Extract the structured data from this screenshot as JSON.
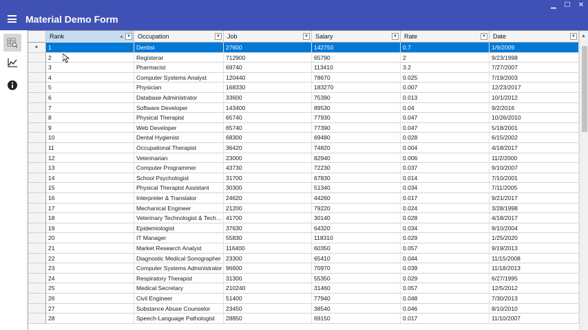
{
  "window": {
    "minimize": "▁",
    "maximize": "☐",
    "close": "✕"
  },
  "app_title": "Material Demo Form",
  "sidebar": {
    "items": [
      {
        "name": "grid-icon",
        "active": true
      },
      {
        "name": "chart-icon",
        "active": false
      },
      {
        "name": "info-icon",
        "active": false
      }
    ]
  },
  "grid": {
    "columns": [
      "Rank",
      "Occupation",
      "Job",
      "Salary",
      "Rate",
      "Date"
    ],
    "selected_row": 0,
    "rows": [
      [
        "1",
        "Dentist",
        "27600",
        "142750",
        "0.7",
        "1/9/2009"
      ],
      [
        "2",
        "Registerar",
        "712900",
        "65790",
        "2",
        "9/23/1998"
      ],
      [
        "3",
        "Pharmacist",
        "69740",
        "113410",
        "3.2",
        "7/27/2007"
      ],
      [
        "4",
        "Computer Systems Analyst",
        "120440",
        "78670",
        "0.025",
        "7/19/2003"
      ],
      [
        "5",
        "Physician",
        "168330",
        "183270",
        "0.007",
        "12/23/2017"
      ],
      [
        "6",
        "Database Administrator",
        "33600",
        "75390",
        "0.013",
        "10/1/2012"
      ],
      [
        "7",
        "Software Developer",
        "143400",
        "89530",
        "0.04",
        "9/2/2016"
      ],
      [
        "8",
        "Physical Therapist",
        "65740",
        "77930",
        "0.047",
        "10/26/2010"
      ],
      [
        "9",
        "Web Developer",
        "65740",
        "77390",
        "0.047",
        "5/18/2001"
      ],
      [
        "10",
        "Dental Hygienist",
        "68300",
        "69480",
        "0.028",
        "6/15/2002"
      ],
      [
        "11",
        "Occupational Therapist",
        "36420",
        "74820",
        "0.004",
        "4/18/2017"
      ],
      [
        "12",
        "Veterinarian",
        "23000",
        "82940",
        "0.006",
        "11/2/2000"
      ],
      [
        "13",
        "Computer Programmer",
        "43730",
        "72230",
        "0.037",
        "9/10/2007"
      ],
      [
        "14",
        "School Psychologist",
        "31700",
        "67830",
        "0.014",
        "7/10/2001"
      ],
      [
        "15",
        "Physical Therapist Assistant",
        "30300",
        "51340",
        "0.034",
        "7/11/2005"
      ],
      [
        "16",
        "Interpreter & Translator",
        "24620",
        "44260",
        "0.017",
        "9/21/2017"
      ],
      [
        "17",
        "Mechanical Engineer",
        "21200",
        "79220",
        "0.024",
        "3/28/1998"
      ],
      [
        "18",
        "Veterinary Technologist & Technician",
        "41700",
        "30140",
        "0.028",
        "4/18/2017"
      ],
      [
        "19",
        "Epidemiologist",
        "37630",
        "64320",
        "0.034",
        "9/10/2004"
      ],
      [
        "20",
        "IT Manager",
        "55830",
        "118310",
        "0.029",
        "1/25/2020"
      ],
      [
        "21",
        "Market Research Analyst",
        "116400",
        "60350",
        "0.057",
        "9/19/2013"
      ],
      [
        "22",
        "Diagnostic Medical Sonographer",
        "23300",
        "65410",
        "0.044",
        "11/15/2008"
      ],
      [
        "23",
        "Computer Systems Administrator",
        "96600",
        "70970",
        "0.039",
        "11/18/2013"
      ],
      [
        "24",
        "Respiratory Therapist",
        "31300",
        "55350",
        "0.029",
        "6/27/1995"
      ],
      [
        "25",
        "Medical Secretary",
        "210240",
        "31460",
        "0.057",
        "12/5/2012"
      ],
      [
        "26",
        "Civil Engineer",
        "51400",
        "77940",
        "0.048",
        "7/30/2013"
      ],
      [
        "27",
        "Substance Abuse Counselor",
        "23450",
        "38540",
        "0.046",
        "8/10/2010"
      ],
      [
        "28",
        "Speech-Language Pathologist",
        "28850",
        "69150",
        "0.017",
        "11/10/2007"
      ]
    ]
  },
  "colors": {
    "titlebar": "#3f51b5",
    "selection": "#0078d7",
    "header_selected": "#c7dcf0"
  }
}
